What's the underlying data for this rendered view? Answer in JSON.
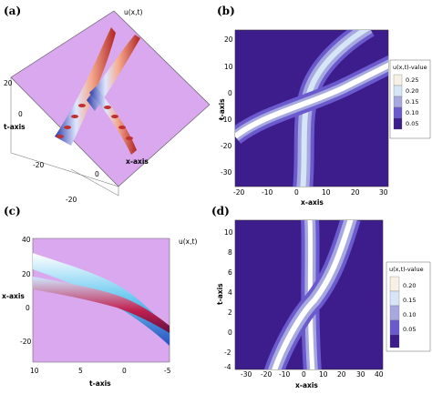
{
  "panels": [
    {
      "label": "(a)",
      "type": "surface3d",
      "zlabel": "u(x,t)",
      "xlabel": "x-axis",
      "ylabel": "t-axis",
      "xticks": [
        "0",
        "-20"
      ],
      "yticks": [
        "20",
        "0",
        "-20"
      ]
    },
    {
      "label": "(b)",
      "type": "contour",
      "xlabel": "x-axis",
      "ylabel": "t-axis",
      "xticks": [
        "-20",
        "-10",
        "0",
        "10",
        "20",
        "30"
      ],
      "yticks": [
        "20",
        "10",
        "0",
        "-10",
        "-20",
        "-30"
      ],
      "xlim": [
        -20,
        30
      ],
      "ylim": [
        -35,
        25
      ],
      "legend_title": "u(x,t)-value",
      "legend_levels": [
        "0.25",
        "0.20",
        "0.15",
        "0.10",
        "0.05"
      ]
    },
    {
      "label": "(c)",
      "type": "surface3d",
      "zlabel": "u(x,t)",
      "xlabel": "t-axis",
      "ylabel": "x-axis",
      "xticks": [
        "10",
        "5",
        "0",
        "-5"
      ],
      "yticks": [
        "40",
        "20",
        "0",
        "-20"
      ]
    },
    {
      "label": "(d)",
      "type": "contour",
      "xlabel": "x-axis",
      "ylabel": "t-axis",
      "xticks": [
        "-30",
        "-20",
        "-10",
        "0",
        "10",
        "20",
        "30",
        "40"
      ],
      "yticks": [
        "10",
        "8",
        "6",
        "4",
        "2",
        "0",
        "-2",
        "-4"
      ],
      "xlim": [
        -30,
        40
      ],
      "ylim": [
        -5,
        10
      ],
      "legend_title": "u(x,t)-value",
      "legend_levels": [
        "0.20",
        "0.15",
        "0.10",
        "0.05"
      ]
    }
  ],
  "chart_data": [
    {
      "type": "surface3d",
      "title": "",
      "xlabel": "x-axis",
      "ylabel": "t-axis",
      "zlabel": "u(x,t)"
    },
    {
      "type": "heatmap",
      "title": "",
      "xlabel": "x-axis",
      "ylabel": "t-axis",
      "xlim": [
        -20,
        30
      ],
      "ylim": [
        -35,
        25
      ],
      "levels": [
        0.05,
        0.1,
        0.15,
        0.2,
        0.25
      ]
    },
    {
      "type": "surface3d",
      "title": "",
      "xlabel": "t-axis",
      "ylabel": "x-axis",
      "zlabel": "u(x,t)"
    },
    {
      "type": "heatmap",
      "title": "",
      "xlabel": "x-axis",
      "ylabel": "t-axis",
      "xlim": [
        -30,
        40
      ],
      "ylim": [
        -5,
        10
      ],
      "levels": [
        0.05,
        0.1,
        0.15,
        0.2
      ]
    }
  ],
  "colors": {
    "background": "#3d1c8c",
    "surface": "#d9a8ee",
    "peak": "#f4f0ff"
  }
}
